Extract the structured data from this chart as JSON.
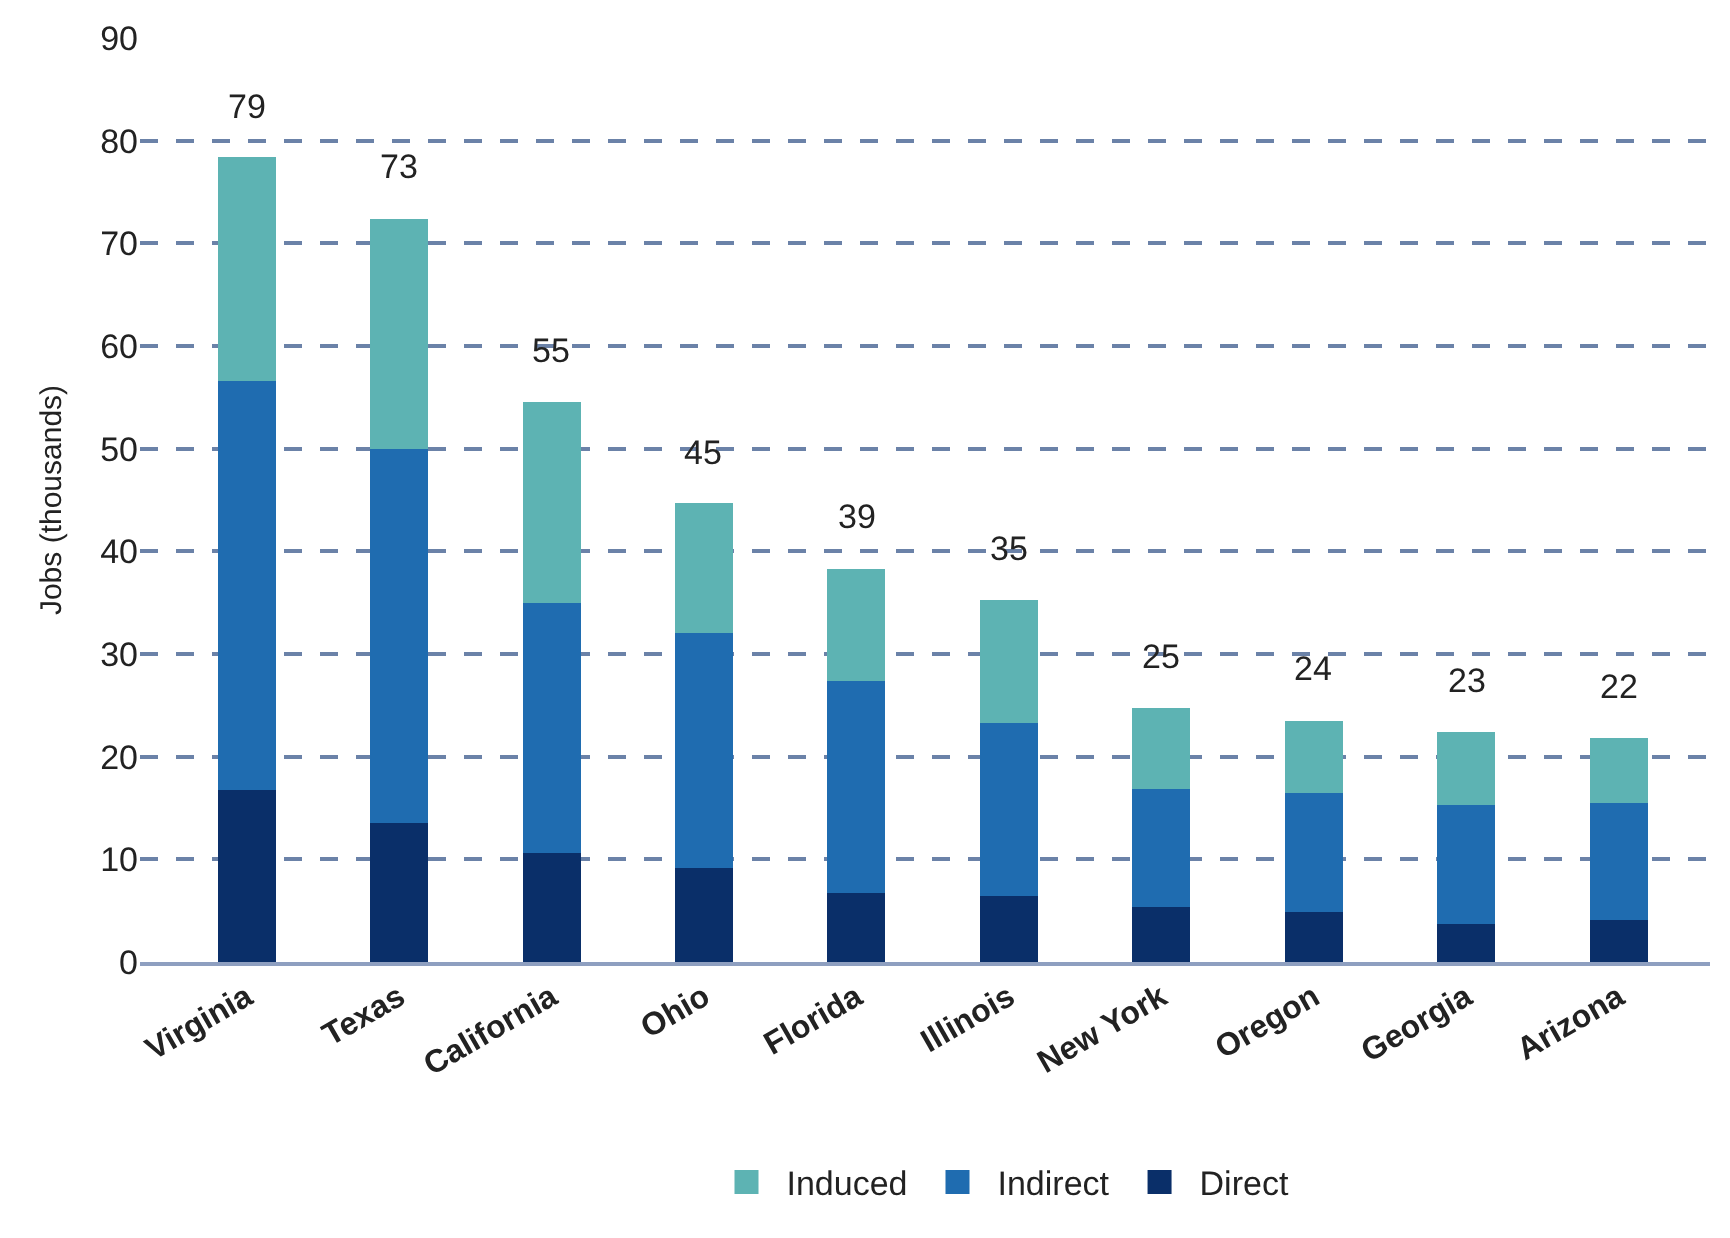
{
  "chart_data": {
    "type": "bar",
    "stacked": true,
    "ylabel": "Jobs (thousands)",
    "categories": [
      "Virginia",
      "Texas",
      "California",
      "Ohio",
      "Florida",
      "Illinois",
      "New York",
      "Oregon",
      "Georgia",
      "Arizona"
    ],
    "series": [
      {
        "name": "Direct",
        "color": "#0a2f69",
        "values": [
          16.8,
          13.5,
          10.6,
          9.2,
          6.7,
          6.4,
          5.4,
          4.9,
          3.7,
          4.1
        ]
      },
      {
        "name": "Indirect",
        "color": "#1f6cb0",
        "values": [
          39.8,
          36.5,
          24.4,
          22.8,
          20.7,
          16.9,
          11.5,
          11.6,
          11.6,
          11.4
        ]
      },
      {
        "name": "Induced",
        "color": "#5db3b3",
        "values": [
          21.8,
          22.4,
          19.5,
          12.7,
          10.9,
          12.0,
          7.8,
          7.0,
          7.1,
          6.3
        ]
      }
    ],
    "totals": [
      "79",
      "73",
      "55",
      "45",
      "39",
      "35",
      "25",
      "24",
      "23",
      "22"
    ],
    "ylim": [
      0,
      90
    ],
    "yticks": [
      0,
      10,
      20,
      30,
      40,
      50,
      60,
      70,
      80,
      90
    ],
    "grid": "y",
    "legend": "bottom"
  }
}
